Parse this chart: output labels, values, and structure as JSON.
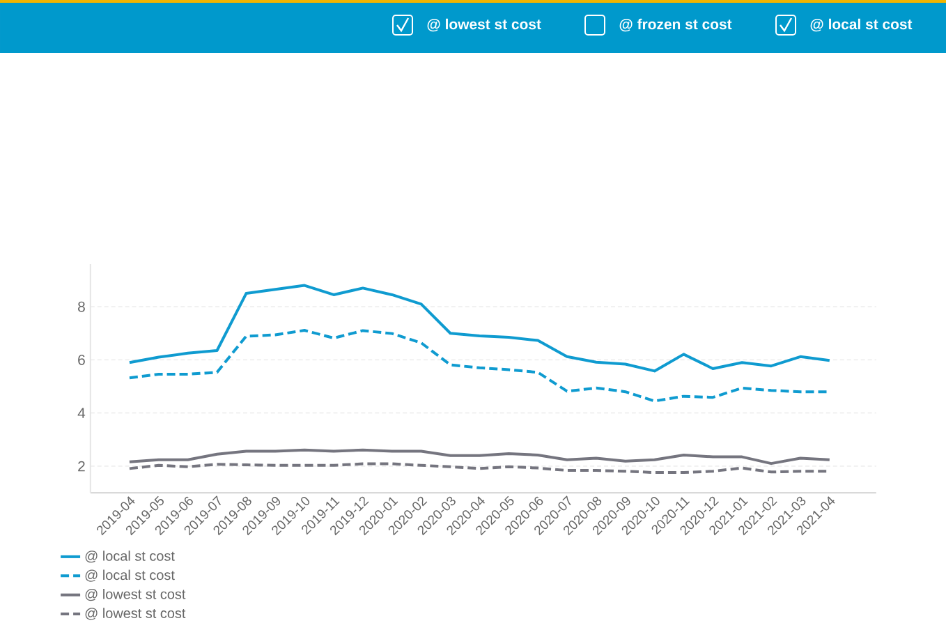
{
  "chart_data": {
    "type": "line",
    "categories": [
      "2019-04",
      "2019-05",
      "2019-06",
      "2019-07",
      "2019-08",
      "2019-09",
      "2019-10",
      "2019-11",
      "2019-12",
      "2020-01",
      "2020-02",
      "2020-03",
      "2020-04",
      "2020-05",
      "2020-06",
      "2020-07",
      "2020-08",
      "2020-09",
      "2020-10",
      "2020-11",
      "2020-12",
      "2021-01",
      "2021-02",
      "2021-03",
      "2021-04"
    ],
    "series": [
      {
        "name": "@ local st cost",
        "color": "#0f9bd0",
        "line_style": "solid",
        "values": [
          5.9,
          6.1,
          6.25,
          6.35,
          8.5,
          8.65,
          8.8,
          8.45,
          8.7,
          8.45,
          8.1,
          7.0,
          6.9,
          6.85,
          6.73,
          6.12,
          5.91,
          5.84,
          5.58,
          6.21,
          5.67,
          5.9,
          5.77,
          6.12,
          5.98
        ]
      },
      {
        "name": "@ local st cost",
        "color": "#0f9bd0",
        "line_style": "dashed",
        "values": [
          5.32,
          5.46,
          5.46,
          5.53,
          6.89,
          6.94,
          7.11,
          6.82,
          7.1,
          6.99,
          6.64,
          5.81,
          5.7,
          5.63,
          5.53,
          4.82,
          4.94,
          4.8,
          4.45,
          4.63,
          4.59,
          4.94,
          4.85,
          4.8,
          4.8
        ]
      },
      {
        "name": "@ lowest st cost",
        "color": "#75757f",
        "line_style": "solid",
        "values": [
          2.16,
          2.24,
          2.24,
          2.45,
          2.56,
          2.56,
          2.61,
          2.56,
          2.61,
          2.56,
          2.56,
          2.4,
          2.4,
          2.47,
          2.42,
          2.24,
          2.3,
          2.19,
          2.24,
          2.42,
          2.35,
          2.35,
          2.1,
          2.3,
          2.24
        ]
      },
      {
        "name": "@ lowest st cost",
        "color": "#75757f",
        "line_style": "dashed",
        "values": [
          1.91,
          2.03,
          1.98,
          2.07,
          2.05,
          2.03,
          2.03,
          2.03,
          2.09,
          2.09,
          2.03,
          1.98,
          1.91,
          1.98,
          1.93,
          1.84,
          1.84,
          1.81,
          1.76,
          1.76,
          1.81,
          1.93,
          1.78,
          1.81,
          1.81
        ]
      }
    ],
    "ylim": [
      1,
      9.6
    ],
    "yticks": [
      2,
      4,
      6,
      8
    ],
    "grid": "y",
    "legend": "bottom left",
    "marker": "none",
    "annotations": [
      "@ lowest st cost",
      "@ frozen st cost",
      "@ local st cost"
    ]
  }
}
